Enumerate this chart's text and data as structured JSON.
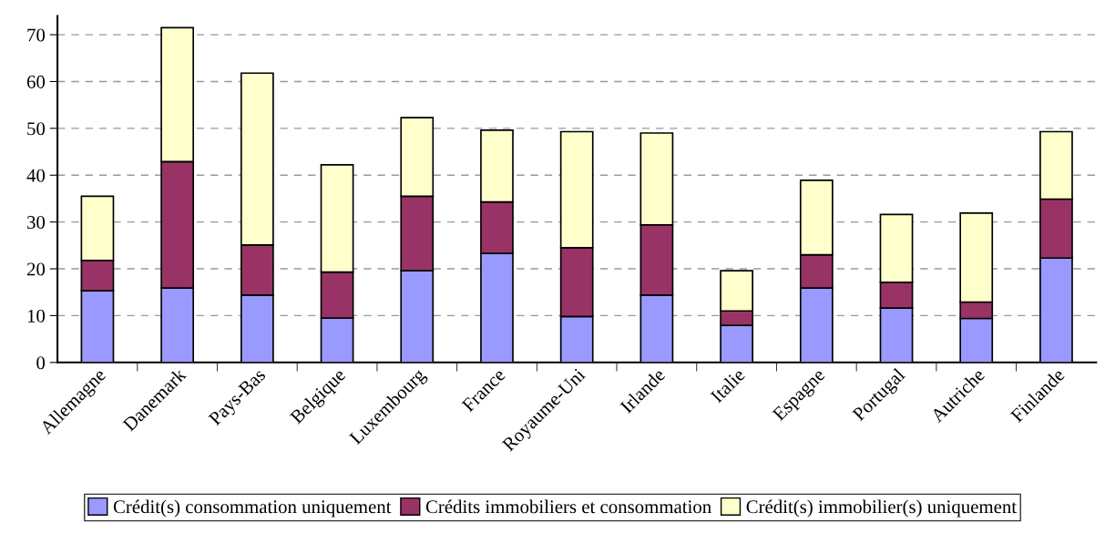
{
  "chart_data": {
    "type": "bar",
    "stacked": true,
    "categories": [
      "Allemagne",
      "Danemark",
      "Pays-Bas",
      "Belgique",
      "Luxembourg",
      "France",
      "Royaume-Uni",
      "Irlande",
      "Italie",
      "Espagne",
      "Portugal",
      "Autriche",
      "Finlande"
    ],
    "series": [
      {
        "name": "Crédit(s) consommation uniquement",
        "color": "#9999ff",
        "values": [
          15.3,
          15.9,
          14.4,
          9.5,
          19.6,
          23.3,
          9.8,
          14.4,
          7.9,
          15.9,
          11.6,
          9.4,
          22.3
        ]
      },
      {
        "name": "Crédits immobiliers et consommation",
        "color": "#993366",
        "values": [
          6.5,
          27.0,
          10.7,
          9.8,
          15.9,
          11.0,
          14.7,
          15.0,
          3.1,
          7.1,
          5.5,
          3.5,
          12.6
        ]
      },
      {
        "name": "Crédit(s) immobilier(s) uniquement",
        "color": "#ffffcc",
        "values": [
          13.7,
          28.6,
          36.7,
          22.9,
          16.8,
          15.3,
          24.8,
          19.6,
          8.6,
          15.9,
          14.5,
          19.0,
          14.4
        ]
      }
    ],
    "ylim": [
      0,
      74
    ],
    "yticks": [
      0,
      10,
      20,
      30,
      40,
      50,
      60,
      70
    ],
    "grid": "y",
    "legend": "bottom"
  }
}
